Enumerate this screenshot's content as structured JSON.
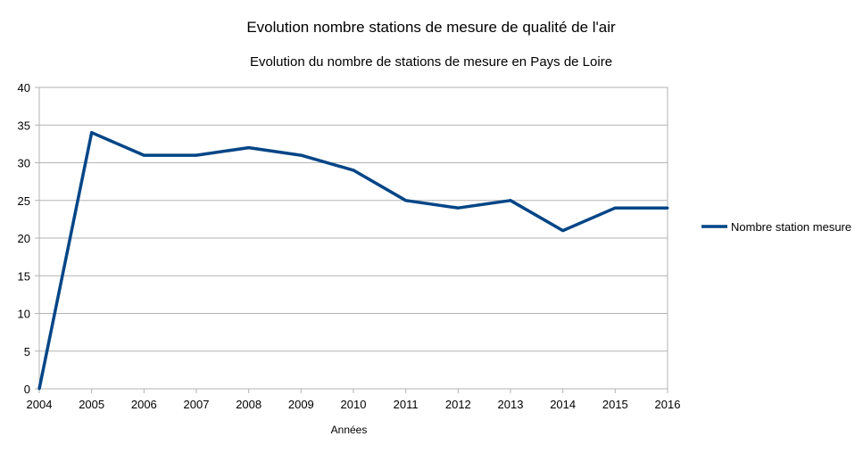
{
  "chart_data": {
    "type": "line",
    "title": "Evolution nombre stations de mesure de qualité de l'air",
    "subtitle": "Evolution du nombre de stations de mesure en Pays de Loire",
    "xlabel": "Années",
    "ylabel": "",
    "x": [
      "2004",
      "2005",
      "2006",
      "2007",
      "2008",
      "2009",
      "2010",
      "2011",
      "2012",
      "2013",
      "2014",
      "2015",
      "2016"
    ],
    "ylim": [
      0,
      40
    ],
    "yticks": [
      0,
      5,
      10,
      15,
      20,
      25,
      30,
      35,
      40
    ],
    "grid": true,
    "legend_position": "right",
    "series": [
      {
        "name": "Nombre station mesure",
        "color": "#004586",
        "values": [
          0,
          34,
          31,
          31,
          32,
          31,
          29,
          25,
          24,
          25,
          21,
          24,
          24
        ]
      }
    ]
  }
}
